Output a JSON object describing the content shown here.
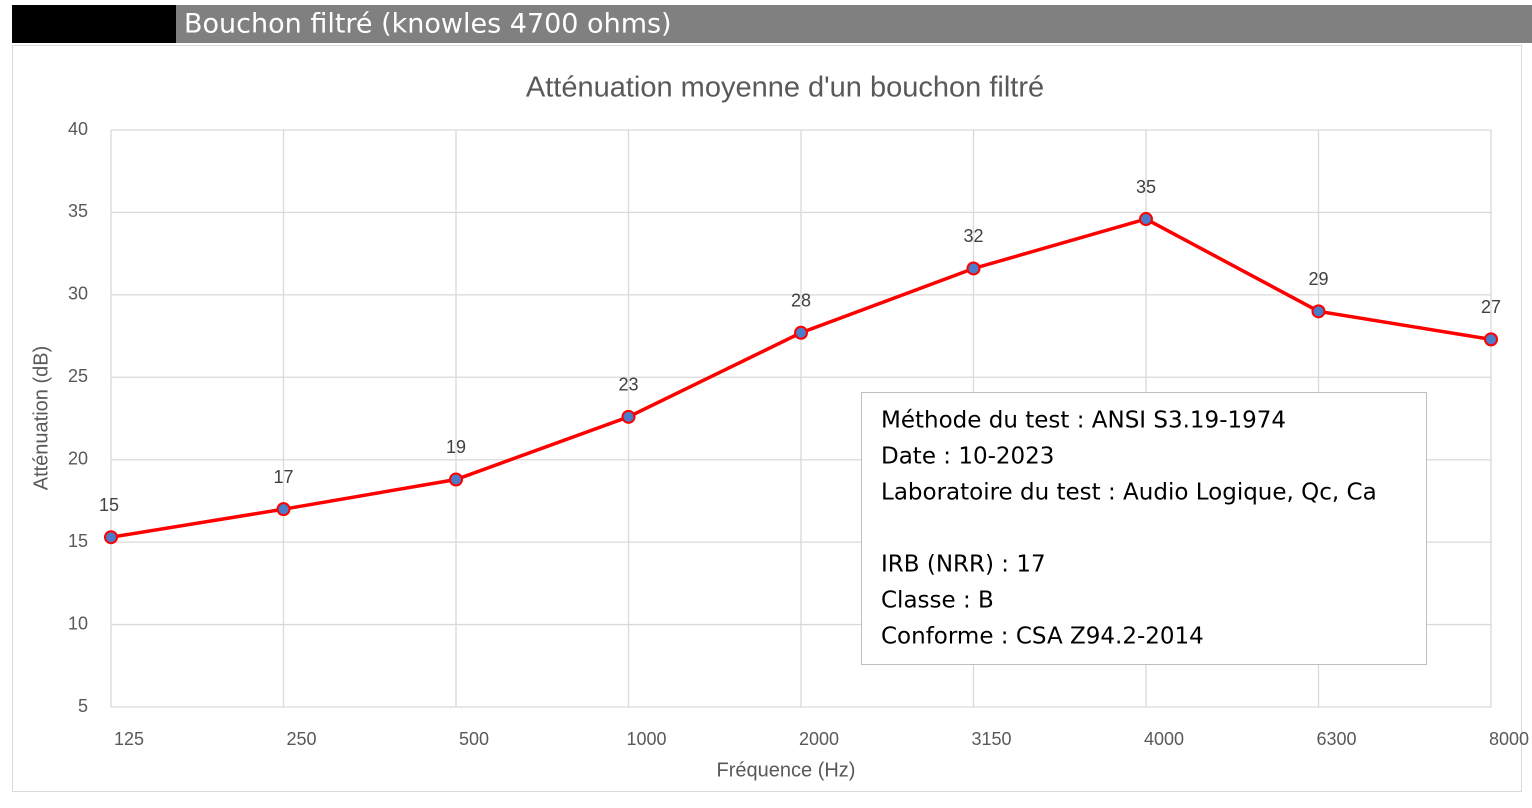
{
  "header": {
    "title": "Bouchon filtré (knowles 4700 ohms)"
  },
  "chart_data": {
    "type": "line",
    "title": "Atténuation moyenne d'un bouchon filtré",
    "x_label": "Fréquence (Hz)",
    "y_label": "Atténuation (dB)",
    "categories": [
      "125",
      "250",
      "500",
      "1000",
      "2000",
      "3150",
      "4000",
      "6300",
      "8000"
    ],
    "series": [
      {
        "name": "Atténuation",
        "color": "#ff0000",
        "marker_color": "#4a7cc9",
        "values": [
          15.3,
          17.0,
          18.8,
          22.6,
          27.7,
          31.6,
          34.6,
          29.0,
          27.3
        ],
        "value_labels": [
          "15",
          "17",
          "19",
          "23",
          "28",
          "32",
          "35",
          "29",
          "27"
        ]
      }
    ],
    "ylim": [
      5,
      40
    ],
    "yticks": [
      5,
      10,
      15,
      20,
      25,
      30,
      35,
      40
    ],
    "grid": true,
    "annotation": {
      "lines": [
        "Méthode du test : ANSI S3.19-1974",
        "Date : 10-2023",
        "Laboratoire du test : Audio Logique, Qc, Ca",
        "IRB (NRR) : 17",
        "Classe : B",
        "Conforme : CSA Z94.2-2014"
      ]
    }
  }
}
